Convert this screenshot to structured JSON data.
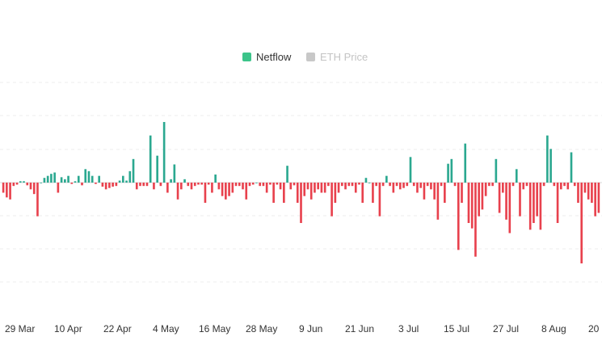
{
  "chart_data": {
    "type": "bar",
    "legend": {
      "placement": "top-center",
      "items": [
        {
          "label": "Netflow",
          "color": "#3cc48a",
          "active": true
        },
        {
          "label": "ETH Price",
          "color": "#c8c8c8",
          "active": false
        }
      ]
    },
    "colors": {
      "positive": "#2ba890",
      "negative": "#e8414d",
      "grid": "#eeeeee",
      "zero_line": "#d9d9d9"
    },
    "x_ticks": [
      "29 Mar",
      "10 Apr",
      "22 Apr",
      "4 May",
      "16 May",
      "28 May",
      "9 Jun",
      "21 Jun",
      "3 Jul",
      "15 Jul",
      "27 Jul",
      "8 Aug",
      "20"
    ],
    "ylim": [
      -120,
      120
    ],
    "grid": true,
    "series": [
      {
        "values": [
          -15,
          -22,
          -25,
          -5,
          -3,
          2,
          2,
          -4,
          -10,
          -17,
          -50,
          0,
          7,
          10,
          13,
          15,
          -15,
          8,
          5,
          10,
          -2,
          2,
          10,
          -4,
          20,
          17,
          10,
          -2,
          10,
          -6,
          -10,
          -8,
          -6,
          -5,
          3,
          10,
          3,
          17,
          35,
          -10,
          -5,
          -5,
          -5,
          70,
          -10,
          40,
          -5,
          90,
          -15,
          5,
          27,
          -25,
          -10,
          5,
          -5,
          -10,
          -5,
          -3,
          -3,
          -30,
          -3,
          -15,
          12,
          -10,
          -20,
          -25,
          -20,
          -15,
          -5,
          -5,
          -10,
          -25,
          -5,
          -3,
          0,
          -5,
          -5,
          -15,
          -3,
          -30,
          -3,
          -10,
          -30,
          25,
          -10,
          -4,
          -30,
          -60,
          -20,
          -10,
          -25,
          -15,
          -10,
          -15,
          -15,
          -5,
          -50,
          -30,
          -15,
          -5,
          -10,
          -5,
          -5,
          -15,
          -3,
          -30,
          7,
          0,
          -30,
          -5,
          -50,
          -5,
          10,
          -5,
          -15,
          -5,
          -10,
          -8,
          -5,
          38,
          -5,
          -15,
          -8,
          -25,
          -5,
          -10,
          -25,
          -55,
          -5,
          -30,
          28,
          35,
          -5,
          -100,
          -30,
          58,
          -60,
          -68,
          -110,
          -50,
          -40,
          -20,
          -5,
          -5,
          35,
          -45,
          -15,
          -55,
          -75,
          -5,
          20,
          -50,
          -10,
          -5,
          -70,
          -60,
          -50,
          -70,
          -5,
          70,
          50,
          -5,
          -60,
          -10,
          -5,
          -10,
          45,
          -5,
          -30,
          -120,
          -15,
          -25,
          -30,
          -50,
          -45
        ],
        "color_by_sign": true
      }
    ]
  }
}
